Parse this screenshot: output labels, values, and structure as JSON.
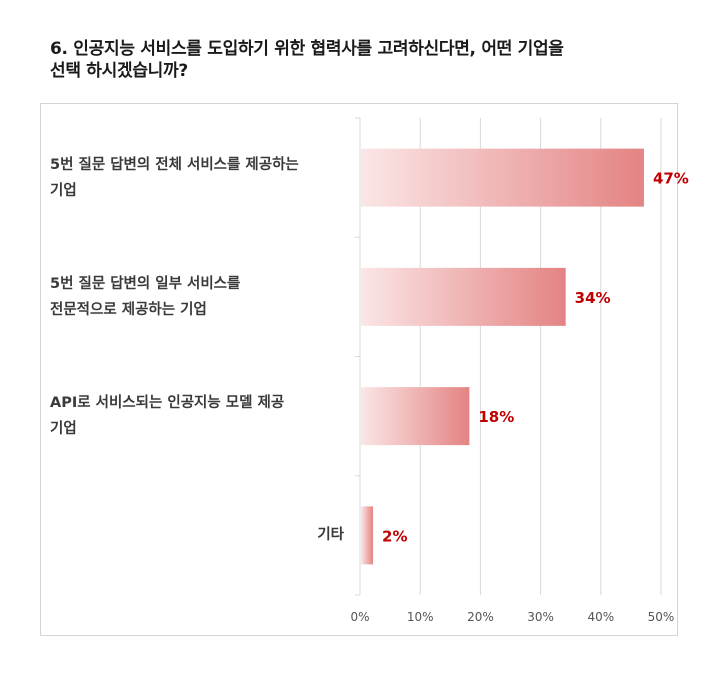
{
  "question": {
    "line1": "6. 인공지능 서비스를 도입하기 위한 협력사를 고려하신다면, 어떤 기업을",
    "line2": "선택 하시겠습니까?"
  },
  "colors": {
    "bar_light": "#fbe6e6",
    "bar_dark": "#e48383",
    "value_label": "#c00000",
    "grid": "#d9d9d9"
  },
  "chart_data": {
    "type": "bar",
    "orientation": "horizontal",
    "categories": [
      [
        "5번 질문 답변의 전체 서비스를 제공하는",
        "기업"
      ],
      [
        "5번 질문 답변의 일부 서비스를",
        "전문적으로 제공하는 기업"
      ],
      [
        "API로 서비스되는 인공지능 모델 제공",
        "기업"
      ],
      [
        "기타"
      ]
    ],
    "values": [
      47,
      34,
      18,
      2
    ],
    "value_labels": [
      "47%",
      "34%",
      "18%",
      "2%"
    ],
    "xlim": [
      0,
      50
    ],
    "xticks": [
      "0%",
      "10%",
      "20%",
      "30%",
      "40%",
      "50%"
    ],
    "grid": true,
    "legend": "none"
  }
}
